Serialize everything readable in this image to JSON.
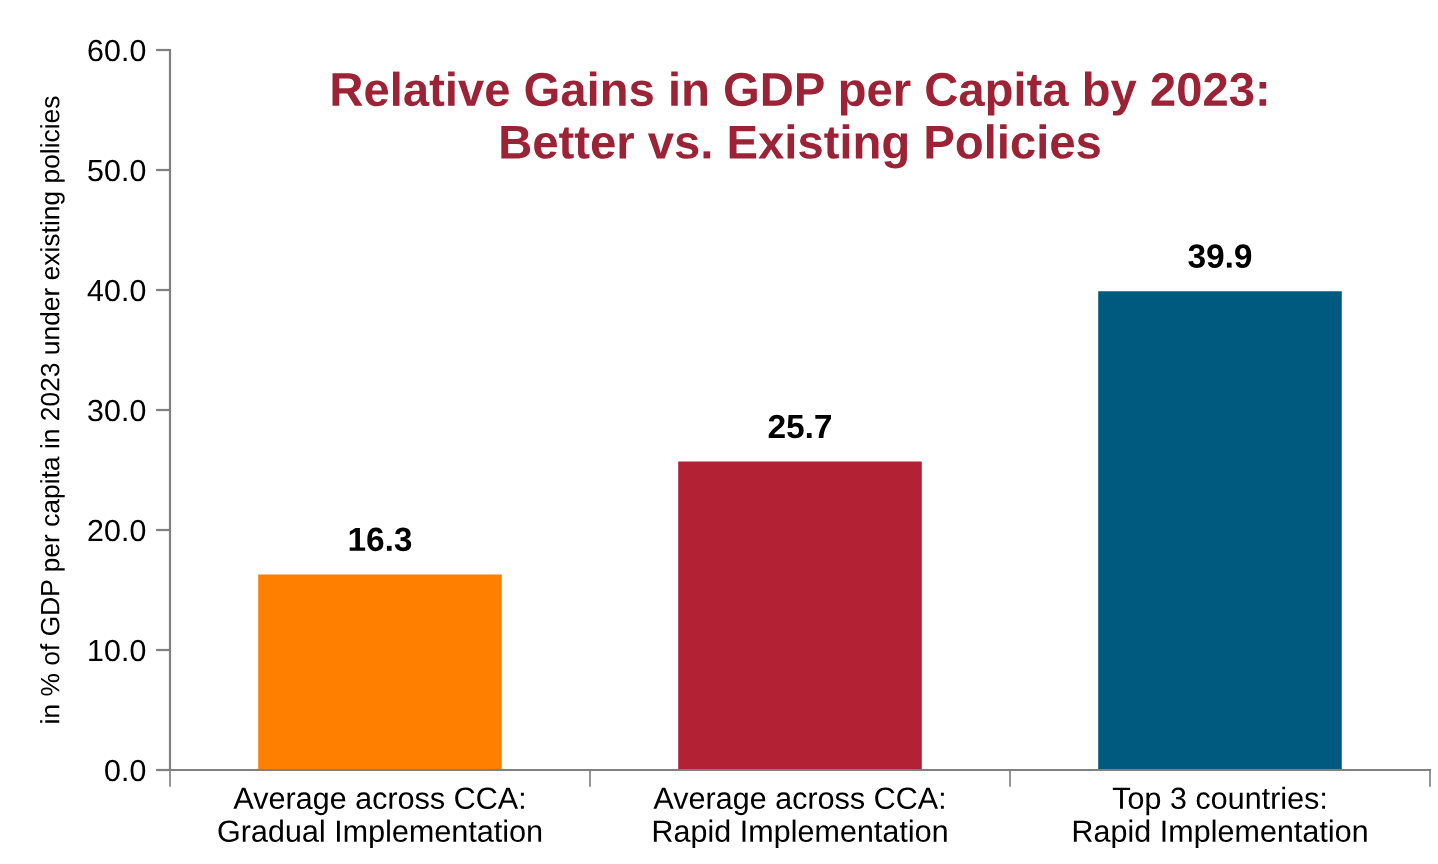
{
  "chart_data": {
    "type": "bar",
    "title": "Relative Gains in GDP per Capita by 2023:\nBetter vs. Existing Policies",
    "ylabel": "in % of GDP per capita in 2023 under existing policies",
    "categories": [
      "Average across CCA:\nGradual Implementation",
      "Average across CCA:\nRapid Implementation",
      "Top 3 countries:\nRapid Implementation"
    ],
    "values": [
      16.3,
      25.7,
      39.9
    ],
    "colors": [
      "#ff8000",
      "#b22234",
      "#005a80"
    ],
    "ylim": [
      0,
      60
    ],
    "yticks": [
      {
        "value": 0,
        "label": "0.0"
      },
      {
        "value": 10,
        "label": "10.0"
      },
      {
        "value": 20,
        "label": "20.0"
      },
      {
        "value": 30,
        "label": "30.0"
      },
      {
        "value": 40,
        "label": "40.0"
      },
      {
        "value": 50,
        "label": "50.0"
      },
      {
        "value": 60,
        "label": "60.0"
      }
    ],
    "data_labels": true,
    "grid": false,
    "legend": false
  }
}
